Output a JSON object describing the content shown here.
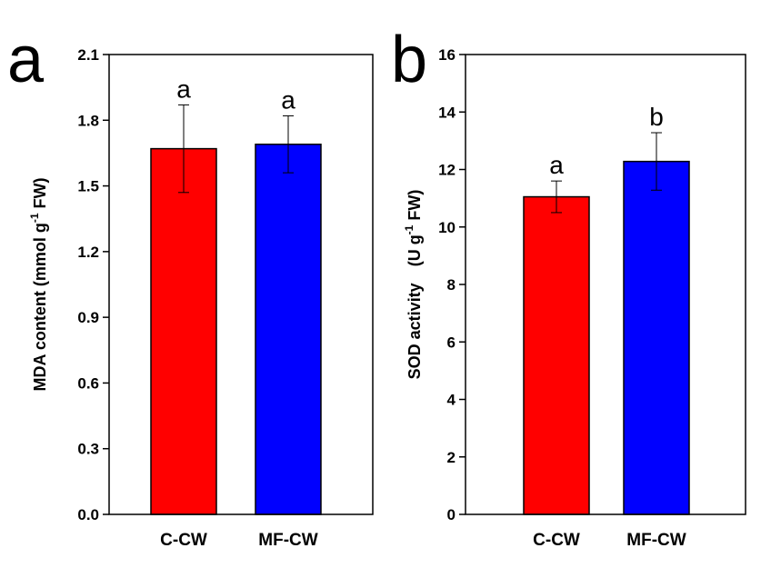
{
  "colors": {
    "c_cw": "#ff0000",
    "mf_cw": "#0000ff",
    "axis": "#000000"
  },
  "chart_data": [
    {
      "panel_label": "a",
      "type": "bar",
      "categories": [
        "C-CW",
        "MF-CW"
      ],
      "values": [
        1.67,
        1.69
      ],
      "errors": [
        0.2,
        0.13
      ],
      "significance": [
        "a",
        "a"
      ],
      "ylim": [
        0,
        2.1
      ],
      "yticks": [
        0.0,
        0.3,
        0.6,
        0.9,
        1.2,
        1.5,
        1.8,
        2.1
      ],
      "ytick_labels": [
        "0.0",
        "0.3",
        "0.6",
        "0.9",
        "1.2",
        "1.5",
        "1.8",
        "2.1"
      ],
      "ylabel_main": "MDA content (mmol g",
      "ylabel_sup": "-1",
      "ylabel_tail": " FW)",
      "xlabel": ""
    },
    {
      "panel_label": "b",
      "type": "bar",
      "categories": [
        "C-CW",
        "MF-CW"
      ],
      "values": [
        11.05,
        12.28
      ],
      "errors": [
        0.55,
        1.0
      ],
      "significance": [
        "a",
        "b"
      ],
      "ylim": [
        0,
        16
      ],
      "yticks": [
        0,
        2,
        4,
        6,
        8,
        10,
        12,
        14,
        16
      ],
      "ytick_labels": [
        "0",
        "2",
        "4",
        "6",
        "8",
        "10",
        "12",
        "14",
        "16"
      ],
      "ylabel_main": "SOD activity　(U g",
      "ylabel_sup": "-1",
      "ylabel_tail": " FW)",
      "xlabel": ""
    }
  ]
}
